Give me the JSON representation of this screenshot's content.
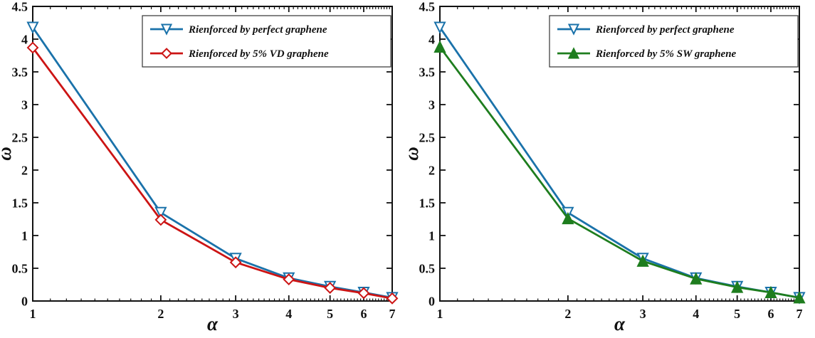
{
  "figure": {
    "background": "#ffffff",
    "frame_color": "#111111",
    "tick_color": "#111111"
  },
  "chart_data": [
    {
      "type": "line",
      "title": "",
      "xlabel": "α",
      "ylabel": "ω",
      "x_scale": "log",
      "xlim": [
        1,
        7
      ],
      "ylim": [
        0,
        4.5
      ],
      "x_ticks": [
        1,
        2,
        3,
        4,
        5,
        6,
        7
      ],
      "y_ticks": [
        0,
        0.5,
        1,
        1.5,
        2,
        2.5,
        3,
        3.5,
        4,
        4.5
      ],
      "grid": false,
      "legend_position": "top-right",
      "x": [
        1,
        2,
        3,
        4,
        5,
        6,
        7
      ],
      "series": [
        {
          "name": "Rienforced by perfect graphene",
          "color": "#1a72aa",
          "marker": "triangle-down-open",
          "values": [
            4.18,
            1.35,
            0.65,
            0.35,
            0.22,
            0.13,
            0.05
          ]
        },
        {
          "name": "Rienforced by 5% VD graphene",
          "color": "#cc1414",
          "marker": "diamond-open",
          "values": [
            3.87,
            1.24,
            0.59,
            0.33,
            0.2,
            0.12,
            0.04
          ]
        }
      ]
    },
    {
      "type": "line",
      "title": "",
      "xlabel": "α",
      "ylabel": "ω",
      "x_scale": "log",
      "xlim": [
        1,
        7
      ],
      "ylim": [
        0,
        4.5
      ],
      "x_ticks": [
        1,
        2,
        3,
        4,
        5,
        6,
        7
      ],
      "y_ticks": [
        0,
        0.5,
        1,
        1.5,
        2,
        2.5,
        3,
        3.5,
        4,
        4.5
      ],
      "grid": false,
      "legend_position": "top-right",
      "x": [
        1,
        2,
        3,
        4,
        5,
        6,
        7
      ],
      "series": [
        {
          "name": "Rienforced by perfect graphene",
          "color": "#1a72aa",
          "marker": "triangle-down-open",
          "values": [
            4.18,
            1.35,
            0.65,
            0.35,
            0.22,
            0.13,
            0.05
          ]
        },
        {
          "name": "Rienforced by 5% SW graphene",
          "color": "#1e7d1e",
          "marker": "triangle-up-filled",
          "values": [
            3.88,
            1.26,
            0.61,
            0.34,
            0.21,
            0.13,
            0.05
          ]
        }
      ]
    }
  ]
}
